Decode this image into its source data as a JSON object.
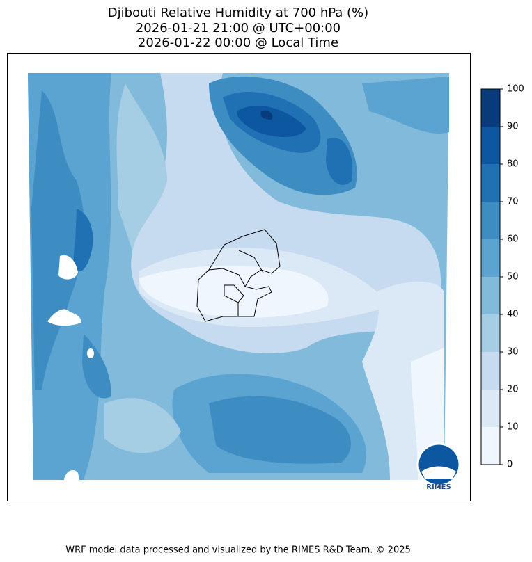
{
  "title": [
    "Djibouti Relative Humidity at 700 hPa (%)",
    "2026-01-21 21:00 @ UTC+00:00",
    "2026-01-22 00:00 @ Local Time"
  ],
  "colorbar": {
    "lim": [
      0,
      100
    ],
    "ticks": [
      0,
      10,
      20,
      30,
      40,
      50,
      60,
      70,
      80,
      90,
      100
    ],
    "colors": [
      "#f0f6fd",
      "#dbe9f6",
      "#c6dbef",
      "#a5cde3",
      "#82badb",
      "#5ba3d0",
      "#3d8dc3",
      "#2070b4",
      "#0d56a0",
      "#083b7c"
    ]
  },
  "logo": "RIMES",
  "footer": "WRF model data processed and visualized by the RIMES R&D Team. © 2025"
}
